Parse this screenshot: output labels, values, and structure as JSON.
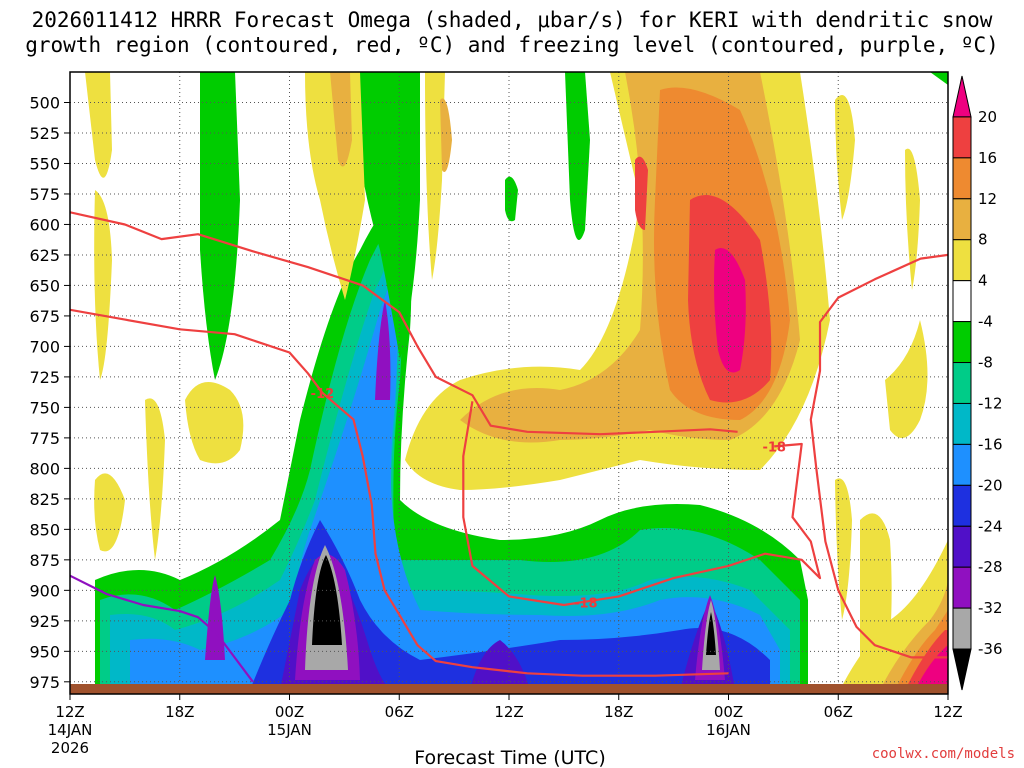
{
  "chart_data": {
    "type": "heatmap",
    "title_line1": "2026011412 HRRR Forecast Omega (shaded, μbar/s) for KERI with dendritic snow",
    "title_line2": "growth region (contoured, red, ºC) and freezing level (contoured, purple, ºC)",
    "xlabel": "Forecast Time (UTC)",
    "credit": "coolwx.com/models",
    "x_ticks": [
      {
        "hour": 0,
        "label": "12Z"
      },
      {
        "hour": 6,
        "label": "18Z"
      },
      {
        "hour": 12,
        "label": "00Z"
      },
      {
        "hour": 18,
        "label": "06Z"
      },
      {
        "hour": 24,
        "label": "12Z"
      },
      {
        "hour": 30,
        "label": "18Z"
      },
      {
        "hour": 36,
        "label": "00Z"
      },
      {
        "hour": 42,
        "label": "06Z"
      },
      {
        "hour": 48,
        "label": "12Z"
      }
    ],
    "date_labels": [
      {
        "hour": 0,
        "line1": "14JAN",
        "line2": "2026"
      },
      {
        "hour": 12,
        "line1": "15JAN",
        "line2": ""
      },
      {
        "hour": 36,
        "line1": "16JAN",
        "line2": ""
      }
    ],
    "x_range_hours": [
      0,
      48
    ],
    "y_ticks": [
      500,
      525,
      550,
      575,
      600,
      625,
      650,
      675,
      700,
      725,
      750,
      775,
      800,
      825,
      850,
      875,
      900,
      925,
      950,
      975
    ],
    "y_range_mb": [
      475,
      985
    ],
    "colorbar": {
      "labels": [
        "20",
        "16",
        "12",
        "8",
        "4",
        "-4",
        "-8",
        "-12",
        "-16",
        "-20",
        "-24",
        "-28",
        "-32",
        "-36"
      ],
      "levels": [
        {
          "label": "20",
          "color": "#ee0080"
        },
        {
          "label": "16",
          "color": "#ee4040"
        },
        {
          "label": "12",
          "color": "#ee8a30"
        },
        {
          "label": "8",
          "color": "#e8b040"
        },
        {
          "label": "4",
          "color": "#eee040"
        },
        {
          "label": "-4",
          "color": "#ffffff"
        },
        {
          "label": "-8",
          "color": "#00cc00"
        },
        {
          "label": "-12",
          "color": "#00cc88"
        },
        {
          "label": "-16",
          "color": "#00b8c8"
        },
        {
          "label": "-20",
          "color": "#1e90ff"
        },
        {
          "label": "-24",
          "color": "#1e30e0"
        },
        {
          "label": "-28",
          "color": "#5010c8"
        },
        {
          "label": "-32",
          "color": "#9010c0"
        },
        {
          "label": "-36",
          "color": "#a8a8a8"
        },
        {
          "label": "",
          "color": "#000000"
        }
      ]
    },
    "contour_labels": [
      {
        "text": "-12",
        "hour": 13.8,
        "mb": 738
      },
      {
        "text": "-18",
        "hour": 38.5,
        "mb": 782
      },
      {
        "text": "-18",
        "hour": 28.2,
        "mb": 910
      }
    ],
    "series": [
      {
        "name": "dgz_upper_left",
        "color": "#ee4040",
        "points": [
          [
            0,
            590
          ],
          [
            3,
            600
          ],
          [
            5,
            612
          ],
          [
            7,
            608
          ],
          [
            10,
            622
          ],
          [
            13,
            635
          ],
          [
            16,
            650
          ],
          [
            18,
            672
          ],
          [
            19,
            700
          ],
          [
            20,
            725
          ],
          [
            22,
            740
          ],
          [
            23,
            765
          ],
          [
            25,
            770
          ],
          [
            29,
            772
          ],
          [
            32,
            770
          ],
          [
            35,
            768
          ],
          [
            36.5,
            770
          ]
        ]
      },
      {
        "name": "dgz_lower_left",
        "color": "#ee4040",
        "points": [
          [
            0,
            670
          ],
          [
            3,
            678
          ],
          [
            6,
            686
          ],
          [
            9,
            690
          ],
          [
            12,
            705
          ],
          [
            13,
            722
          ],
          [
            13.8,
            738
          ],
          [
            15.5,
            760
          ],
          [
            16,
            790
          ],
          [
            16.5,
            830
          ],
          [
            16.7,
            870
          ],
          [
            17.2,
            900
          ],
          [
            18,
            920
          ],
          [
            19,
            945
          ],
          [
            20,
            958
          ],
          [
            22,
            963
          ],
          [
            25,
            968
          ],
          [
            28,
            970
          ],
          [
            32,
            970
          ],
          [
            36,
            968
          ]
        ]
      },
      {
        "name": "dgz_mid",
        "color": "#ee4040",
        "points": [
          [
            22,
            745
          ],
          [
            21.5,
            790
          ],
          [
            21.5,
            840
          ],
          [
            22,
            880
          ],
          [
            24,
            905
          ],
          [
            27,
            912
          ],
          [
            30,
            905
          ],
          [
            33,
            890
          ],
          [
            36,
            880
          ],
          [
            38,
            870
          ],
          [
            40,
            875
          ],
          [
            41,
            890
          ],
          [
            40.5,
            860
          ],
          [
            39.5,
            840
          ],
          [
            40,
            780
          ],
          [
            38.5,
            782
          ]
        ]
      },
      {
        "name": "dgz_right",
        "color": "#ee4040",
        "points": [
          [
            48,
            625
          ],
          [
            46.5,
            628
          ],
          [
            44,
            645
          ],
          [
            42,
            660
          ],
          [
            41,
            680
          ],
          [
            41,
            720
          ],
          [
            40.5,
            760
          ],
          [
            40.8,
            800
          ],
          [
            41.3,
            860
          ],
          [
            42,
            900
          ],
          [
            43,
            930
          ],
          [
            44,
            945
          ],
          [
            46,
            955
          ],
          [
            48,
            955
          ]
        ]
      },
      {
        "name": "freezing_level",
        "color": "#9010c0",
        "points": [
          [
            0,
            888
          ],
          [
            2,
            903
          ],
          [
            4,
            912
          ],
          [
            6,
            917
          ],
          [
            7,
            922
          ],
          [
            8,
            935
          ],
          [
            9,
            955
          ],
          [
            10,
            975
          ]
        ]
      }
    ]
  }
}
